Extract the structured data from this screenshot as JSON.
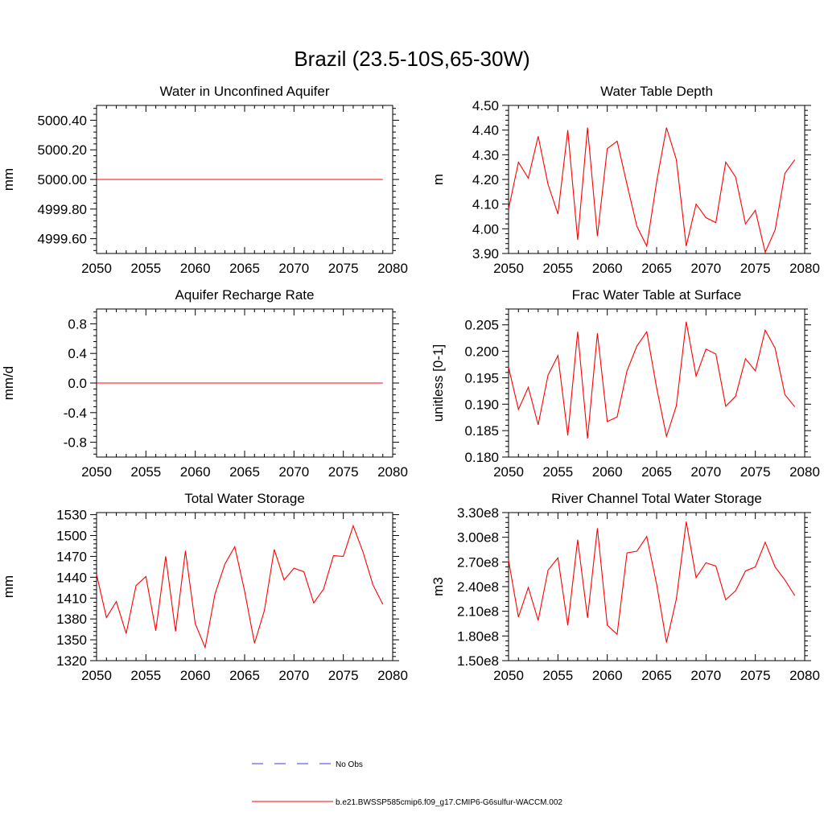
{
  "figure": {
    "title": "Brazil (23.5-10S,65-30W)",
    "legend": {
      "obs_label": "No Obs",
      "obs_color": "#3c3cdc",
      "model_label": "b.e21.BWSSP585cmip6.f09_g17.CMIP6-G6sulfur-WACCM.002",
      "model_color": "#ff0000"
    }
  },
  "chart_data": [
    {
      "type": "line",
      "title": "Water in Unconfined Aquifer",
      "ylabel": "mm",
      "xlim": [
        2050,
        2080
      ],
      "ylim": [
        4999.5,
        5000.5
      ],
      "xticks": [
        2050,
        2055,
        2060,
        2065,
        2070,
        2075,
        2080
      ],
      "yticks": [
        4999.6,
        4999.8,
        5000.0,
        5000.2,
        5000.4
      ],
      "ytick_labels": [
        "4999.60",
        "4999.80",
        "5000.00",
        "5000.20",
        "5000.40"
      ],
      "x": [
        2050,
        2079
      ],
      "series": [
        {
          "values": [
            5000.0,
            5000.0
          ],
          "color": "#ff0000"
        }
      ]
    },
    {
      "type": "line",
      "title": "Water Table Depth",
      "ylabel": "m",
      "xlim": [
        2050,
        2080
      ],
      "ylim": [
        3.9,
        4.5
      ],
      "xticks": [
        2050,
        2055,
        2060,
        2065,
        2070,
        2075,
        2080
      ],
      "yticks": [
        3.9,
        4.0,
        4.1,
        4.2,
        4.3,
        4.4,
        4.5
      ],
      "ytick_labels": [
        "3.90",
        "4.00",
        "4.10",
        "4.20",
        "4.30",
        "4.40",
        "4.50"
      ],
      "x": [
        2050,
        2051,
        2052,
        2053,
        2054,
        2055,
        2056,
        2057,
        2058,
        2059,
        2060,
        2061,
        2062,
        2063,
        2064,
        2065,
        2066,
        2067,
        2068,
        2069,
        2070,
        2071,
        2072,
        2073,
        2074,
        2075,
        2076,
        2077,
        2078,
        2079
      ],
      "series": [
        {
          "values": [
            4.08,
            4.27,
            4.205,
            4.375,
            4.18,
            4.06,
            4.4,
            3.955,
            4.41,
            3.97,
            4.325,
            4.355,
            4.18,
            4.01,
            3.93,
            4.19,
            4.41,
            4.28,
            3.93,
            4.1,
            4.045,
            4.025,
            4.27,
            4.21,
            4.02,
            4.075,
            3.905,
            3.995,
            4.225,
            4.28
          ],
          "color": "#ff0000"
        }
      ]
    },
    {
      "type": "line",
      "title": "Aquifer Recharge Rate",
      "ylabel": "mm/d",
      "xlim": [
        2050,
        2080
      ],
      "ylim": [
        -1.0,
        1.0
      ],
      "xticks": [
        2050,
        2055,
        2060,
        2065,
        2070,
        2075,
        2080
      ],
      "yticks": [
        -0.8,
        -0.4,
        0.0,
        0.4,
        0.8
      ],
      "ytick_labels": [
        "-0.8",
        "-0.4",
        "0.0",
        "0.4",
        "0.8"
      ],
      "x": [
        2050,
        2079
      ],
      "series": [
        {
          "values": [
            0.0,
            0.0
          ],
          "color": "#ff0000"
        }
      ]
    },
    {
      "type": "line",
      "title": "Frac Water Table at Surface",
      "ylabel": "unitless [0-1]",
      "xlim": [
        2050,
        2080
      ],
      "ylim": [
        0.18,
        0.208
      ],
      "xticks": [
        2050,
        2055,
        2060,
        2065,
        2070,
        2075,
        2080
      ],
      "yticks": [
        0.18,
        0.185,
        0.19,
        0.195,
        0.2,
        0.205
      ],
      "ytick_labels": [
        "0.180",
        "0.185",
        "0.190",
        "0.195",
        "0.200",
        "0.205"
      ],
      "x": [
        2050,
        2051,
        2052,
        2053,
        2054,
        2055,
        2056,
        2057,
        2058,
        2059,
        2060,
        2061,
        2062,
        2063,
        2064,
        2065,
        2066,
        2067,
        2068,
        2069,
        2070,
        2071,
        2072,
        2073,
        2074,
        2075,
        2076,
        2077,
        2078,
        2079
      ],
      "series": [
        {
          "values": [
            0.197,
            0.189,
            0.1932,
            0.1861,
            0.1955,
            0.1992,
            0.1841,
            0.2037,
            0.1835,
            0.2034,
            0.1867,
            0.1876,
            0.1963,
            0.201,
            0.2037,
            0.1931,
            0.1839,
            0.1897,
            0.2056,
            0.1953,
            0.2004,
            0.1995,
            0.1896,
            0.1915,
            0.1986,
            0.1963,
            0.204,
            0.2006,
            0.1918,
            0.1895
          ],
          "color": "#ff0000"
        }
      ]
    },
    {
      "type": "line",
      "title": "Total Water Storage",
      "ylabel": "mm",
      "xlim": [
        2050,
        2080
      ],
      "ylim": [
        1320,
        1533
      ],
      "xticks": [
        2050,
        2055,
        2060,
        2065,
        2070,
        2075,
        2080
      ],
      "yticks": [
        1320,
        1350,
        1380,
        1410,
        1440,
        1470,
        1500,
        1530
      ],
      "ytick_labels": [
        "1320",
        "1350",
        "1380",
        "1410",
        "1440",
        "1470",
        "1500",
        "1530"
      ],
      "x": [
        2050,
        2051,
        2052,
        2053,
        2054,
        2055,
        2056,
        2057,
        2058,
        2059,
        2060,
        2061,
        2062,
        2063,
        2064,
        2065,
        2066,
        2067,
        2068,
        2069,
        2070,
        2071,
        2072,
        2073,
        2074,
        2075,
        2076,
        2077,
        2078,
        2079
      ],
      "series": [
        {
          "values": [
            1444,
            1382,
            1405,
            1359,
            1428,
            1441,
            1363,
            1470,
            1362,
            1478,
            1373,
            1339,
            1416,
            1459,
            1484,
            1420,
            1345,
            1392,
            1480,
            1436,
            1453,
            1448,
            1403,
            1423,
            1471,
            1470,
            1514,
            1476,
            1429,
            1401
          ],
          "color": "#ff0000"
        }
      ]
    },
    {
      "type": "line",
      "title": "River Channel Total Water Storage",
      "ylabel": "m3",
      "xlim": [
        2050,
        2080
      ],
      "ylim": [
        150000000,
        330000000
      ],
      "xticks": [
        2050,
        2055,
        2060,
        2065,
        2070,
        2075,
        2080
      ],
      "yticks": [
        150000000,
        180000000,
        210000000,
        240000000,
        270000000,
        300000000,
        330000000
      ],
      "ytick_labels": [
        "1.50e8",
        "1.80e8",
        "2.10e8",
        "2.40e8",
        "2.70e8",
        "3.00e8",
        "3.30e8"
      ],
      "x": [
        2050,
        2051,
        2052,
        2053,
        2054,
        2055,
        2056,
        2057,
        2058,
        2059,
        2060,
        2061,
        2062,
        2063,
        2064,
        2065,
        2066,
        2067,
        2068,
        2069,
        2070,
        2071,
        2072,
        2073,
        2074,
        2075,
        2076,
        2077,
        2078,
        2079
      ],
      "series": [
        {
          "values": [
            272000000,
            203000000,
            239000000,
            199000000,
            260000000,
            275000000,
            193000000,
            297000000,
            202000000,
            311000000,
            193000000,
            182000000,
            281000000,
            283000000,
            301000000,
            243000000,
            172000000,
            225000000,
            319000000,
            251000000,
            269000000,
            265000000,
            224000000,
            235000000,
            259000000,
            264000000,
            294000000,
            264000000,
            248000000,
            229000000
          ],
          "color": "#ff0000"
        }
      ]
    }
  ]
}
